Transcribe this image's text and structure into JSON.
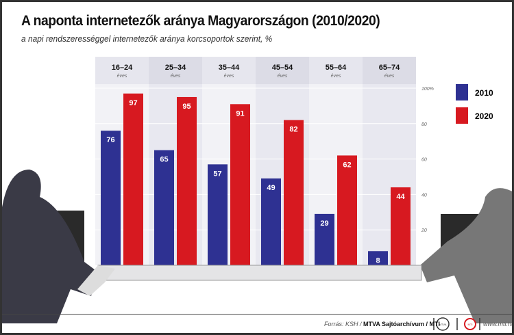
{
  "chart_data": {
    "type": "bar",
    "title": "A naponta internetezők aránya Magyarországon (2010/2020)",
    "subtitle": "a napi rendszerességgel internetezők aránya korcsoportok szerint, %",
    "categories": [
      "16–24",
      "25–34",
      "35–44",
      "45–54",
      "55–64",
      "65–74"
    ],
    "category_sublabel": "éves",
    "series": [
      {
        "name": "2010",
        "color": "#2e3192",
        "values": [
          76,
          65,
          57,
          49,
          29,
          8
        ]
      },
      {
        "name": "2020",
        "color": "#d71920",
        "values": [
          97,
          95,
          91,
          82,
          62,
          44
        ]
      }
    ],
    "ylim": [
      0,
      100
    ],
    "yticks": [
      20,
      40,
      60,
      80,
      100
    ],
    "ytick_labels": [
      "20",
      "40",
      "60",
      "80",
      "100%"
    ],
    "legend": "right"
  },
  "footer": {
    "source_prefix": "Forrás: KSH / ",
    "source_bold": "MTVA Sajtóarchívum / MTI",
    "website": "www.mti.hu",
    "logo1": "MTVA",
    "logo2": "MTI"
  }
}
